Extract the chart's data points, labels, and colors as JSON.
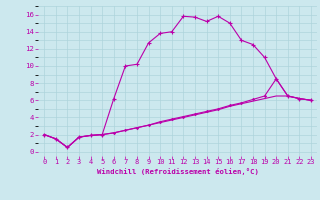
{
  "bg_color": "#cce8ee",
  "grid_color": "#aed4dc",
  "line_color": "#bb00aa",
  "xlabel": "Windchill (Refroidissement éolien,°C)",
  "xlim": [
    -0.5,
    23.5
  ],
  "ylim": [
    -0.5,
    17
  ],
  "xticks": [
    0,
    1,
    2,
    3,
    4,
    5,
    6,
    7,
    8,
    9,
    10,
    11,
    12,
    13,
    14,
    15,
    16,
    17,
    18,
    19,
    20,
    21,
    22,
    23
  ],
  "yticks": [
    0,
    2,
    4,
    6,
    8,
    10,
    12,
    14,
    16
  ],
  "line1_x": [
    0,
    1,
    2,
    3,
    4,
    5,
    6,
    7,
    8,
    9,
    10,
    11,
    12,
    13,
    14,
    15,
    16,
    17,
    18,
    19,
    20,
    21,
    22,
    23
  ],
  "line1_y": [
    2.0,
    1.5,
    0.5,
    1.7,
    1.9,
    2.0,
    6.2,
    10.0,
    10.2,
    12.7,
    13.8,
    14.0,
    15.8,
    15.7,
    15.2,
    15.8,
    15.0,
    13.0,
    12.5,
    11.0,
    8.5,
    6.5,
    6.2,
    6.0
  ],
  "line2_x": [
    0,
    1,
    2,
    3,
    4,
    5,
    6,
    7,
    8,
    9,
    10,
    11,
    12,
    13,
    14,
    15,
    16,
    17,
    18,
    19,
    20,
    21,
    22,
    23
  ],
  "line2_y": [
    2.0,
    1.5,
    0.5,
    1.7,
    1.9,
    2.0,
    2.2,
    2.5,
    2.8,
    3.1,
    3.5,
    3.8,
    4.1,
    4.4,
    4.7,
    5.0,
    5.4,
    5.7,
    6.1,
    6.5,
    8.5,
    6.5,
    6.2,
    6.0
  ],
  "line3_x": [
    0,
    1,
    2,
    3,
    4,
    5,
    6,
    7,
    8,
    9,
    10,
    11,
    12,
    13,
    14,
    15,
    16,
    17,
    18,
    19,
    20,
    21,
    22,
    23
  ],
  "line3_y": [
    2.0,
    1.5,
    0.5,
    1.7,
    1.9,
    2.0,
    2.2,
    2.5,
    2.8,
    3.1,
    3.4,
    3.7,
    4.0,
    4.3,
    4.6,
    4.9,
    5.3,
    5.6,
    5.9,
    6.2,
    6.5,
    6.5,
    6.2,
    6.0
  ],
  "tick_fontsize": 5.0,
  "xlabel_fontsize": 5.2,
  "marker_size": 2.5,
  "linewidth": 0.8
}
